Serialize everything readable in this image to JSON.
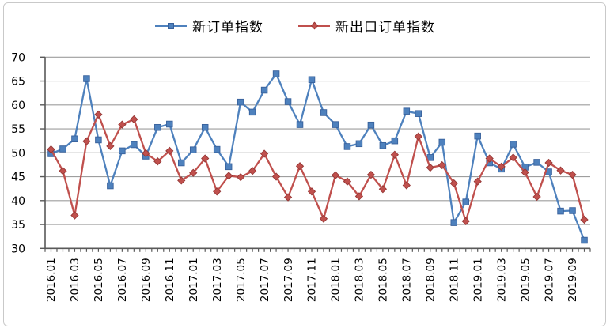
{
  "chart_data": {
    "type": "line",
    "categories": [
      "2016.01",
      "2016.02",
      "2016.03",
      "2016.04",
      "2016.05",
      "2016.06",
      "2016.07",
      "2016.08",
      "2016.09",
      "2016.10",
      "2016.11",
      "2016.12",
      "2017.01",
      "2017.02",
      "2017.03",
      "2017.04",
      "2017.05",
      "2017.06",
      "2017.07",
      "2017.08",
      "2017.09",
      "2017.10",
      "2017.11",
      "2017.12",
      "2018.01",
      "2018.02",
      "2018.03",
      "2018.04",
      "2018.05",
      "2018.06",
      "2018.07",
      "2018.08",
      "2018.09",
      "2018.10",
      "2018.11",
      "2018.12",
      "2019.01",
      "2019.02",
      "2019.03",
      "2019.04",
      "2019.05",
      "2019.06",
      "2019.07",
      "2019.08",
      "2019.09",
      "2019.10"
    ],
    "x_tick_labels": [
      "2016.01",
      "2016.03",
      "2016.05",
      "2016.07",
      "2016.09",
      "2016.11",
      "2017.01",
      "2017.03",
      "2017.05",
      "2017.07",
      "2017.09",
      "2017.11",
      "2018.01",
      "2018.03",
      "2018.05",
      "2018.07",
      "2018.09",
      "2018.11",
      "2019.01",
      "2019.03",
      "2019.05",
      "2019.07",
      "2019.09"
    ],
    "series": [
      {
        "name": "新订单指数",
        "marker": "square",
        "color": "#4E81BD",
        "marker_edge": "#38619C",
        "values": [
          49.8,
          50.8,
          52.9,
          65.5,
          52.7,
          43.1,
          50.4,
          51.7,
          49.3,
          55.3,
          56.0,
          47.9,
          50.6,
          55.3,
          50.7,
          47.1,
          60.6,
          58.5,
          63.1,
          66.5,
          60.7,
          55.9,
          65.3,
          58.4,
          55.9,
          51.3,
          51.9,
          55.8,
          51.5,
          52.5,
          58.7,
          58.2,
          49.0,
          52.2,
          35.4,
          39.7,
          53.5,
          47.9,
          46.6,
          51.8,
          47.0,
          48.0,
          46.0,
          37.8,
          37.9,
          31.7
        ]
      },
      {
        "name": "新出口订单指数",
        "marker": "diamond",
        "color": "#C0504D",
        "marker_edge": "#953735",
        "values": [
          50.7,
          46.2,
          36.9,
          52.4,
          58.0,
          51.4,
          55.9,
          57.0,
          49.9,
          48.2,
          50.4,
          44.2,
          45.8,
          48.8,
          41.9,
          45.2,
          44.9,
          46.2,
          49.8,
          45.0,
          40.7,
          47.2,
          41.9,
          36.2,
          45.3,
          44.0,
          40.9,
          45.4,
          42.4,
          49.6,
          43.2,
          53.4,
          46.9,
          47.4,
          43.6,
          35.7,
          44.0,
          48.8,
          47.1,
          49.0,
          45.9,
          40.8,
          47.9,
          46.3,
          45.4,
          36.0
        ]
      }
    ],
    "title": "",
    "xlabel": "",
    "ylabel": "",
    "ylim": [
      30,
      70
    ],
    "y_ticks": [
      30,
      35,
      40,
      45,
      50,
      55,
      60,
      65,
      70
    ],
    "grid": true,
    "legend_position": "top-center"
  },
  "legend": {
    "items": [
      {
        "label": "新订单指数"
      },
      {
        "label": "新出口订单指数"
      }
    ]
  },
  "colors": {
    "series1": "#4E81BD",
    "series2": "#C0504D",
    "gridline": "#9E9E9E",
    "axis": "#595959",
    "text": "#000000",
    "frame": "#C9C9C9",
    "background": "#FFFFFF"
  }
}
